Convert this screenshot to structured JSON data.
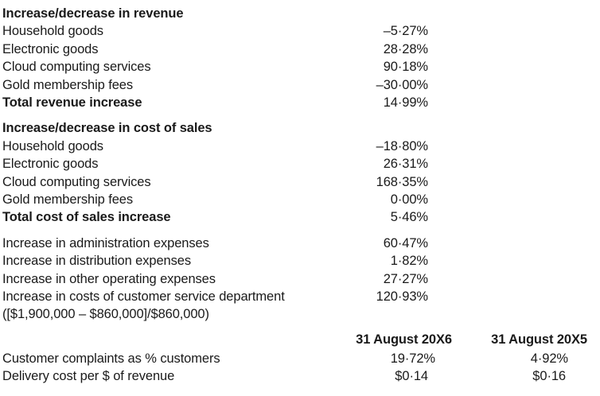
{
  "revenue": {
    "heading": "Increase/decrease in revenue",
    "items": [
      {
        "label": "Household goods",
        "value": "–5·27%"
      },
      {
        "label": "Electronic goods",
        "value": "28·28%"
      },
      {
        "label": "Cloud computing services",
        "value": "90·18%"
      },
      {
        "label": "Gold membership fees",
        "value": "–30·00%"
      }
    ],
    "total": {
      "label": "Total revenue increase",
      "value": "14·99%"
    }
  },
  "cost_of_sales": {
    "heading": "Increase/decrease in cost of sales",
    "items": [
      {
        "label": "Household goods",
        "value": "–18·80%"
      },
      {
        "label": "Electronic goods",
        "value": "26·31%"
      },
      {
        "label": "Cloud computing services",
        "value": "168·35%"
      },
      {
        "label": "Gold membership fees",
        "value": "0·00%"
      }
    ],
    "total": {
      "label": "Total cost of sales increase",
      "value": "5·46%"
    }
  },
  "expenses": [
    {
      "label": "Increase in administration expenses",
      "value": "60·47%"
    },
    {
      "label": "Increase in distribution expenses",
      "value": "1·82%"
    },
    {
      "label": "Increase in other operating expenses",
      "value": "27·27%"
    },
    {
      "label": "Increase in costs of customer service department",
      "value": "120·93%"
    }
  ],
  "expense_note": "([$1,900,000 – $860,000]/$860,000)",
  "comparison": {
    "headers": [
      "31 August 20X6",
      "31 August 20X5"
    ],
    "rows": [
      {
        "label": "Customer complaints as % customers",
        "values": [
          "19·72%",
          "4·92%"
        ]
      },
      {
        "label": "Delivery cost per $ of revenue",
        "values": [
          "$0·14",
          "$0·16"
        ]
      }
    ]
  }
}
